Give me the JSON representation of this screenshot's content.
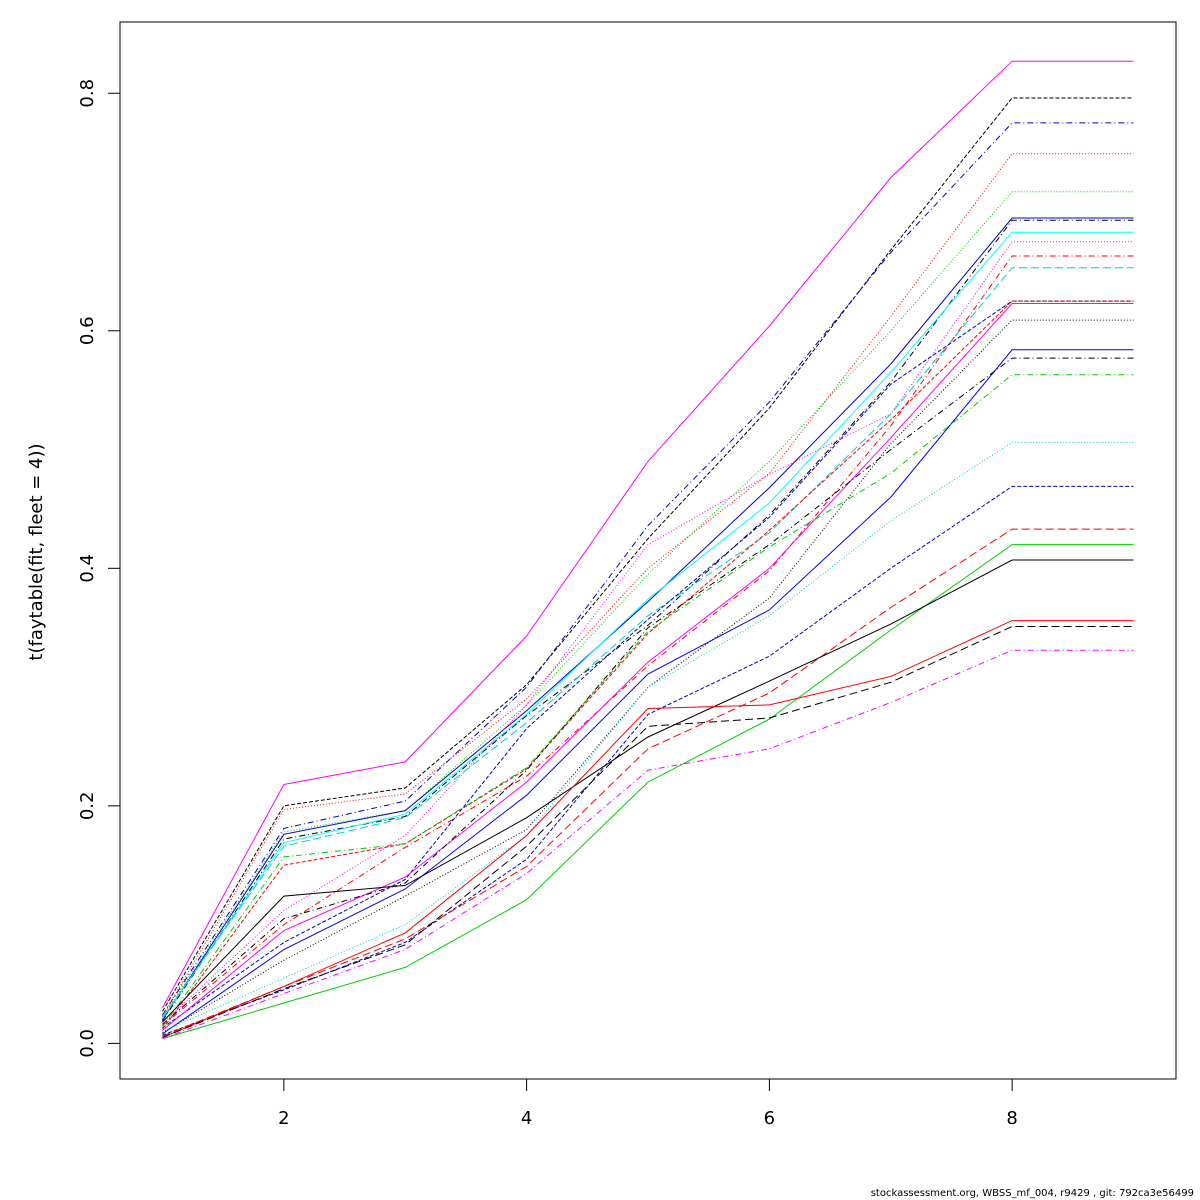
{
  "chart_data": {
    "type": "line",
    "title": "",
    "xlabel": "",
    "ylabel": "t(faytable(fit, fleet = 4))",
    "xlim": [
      0.65,
      9.35
    ],
    "ylim": [
      -0.03,
      0.86
    ],
    "x": [
      1,
      2,
      3,
      4,
      5,
      6,
      7,
      8,
      9
    ],
    "x_ticks": [
      2,
      4,
      6,
      8
    ],
    "y_ticks": [
      0.0,
      0.2,
      0.4,
      0.6,
      0.8
    ],
    "y_tick_labels": [
      "0.0",
      "0.2",
      "0.4",
      "0.6",
      "0.8"
    ],
    "grid": false,
    "legend": "none",
    "series": [
      {
        "color": "#ff00ff",
        "dash": "",
        "values": [
          0.03,
          0.218,
          0.237,
          0.343,
          0.49,
          0.604,
          0.729,
          0.827,
          0.827
        ]
      },
      {
        "color": "#000000",
        "dash": "4,2",
        "values": [
          0.027,
          0.2,
          0.215,
          0.302,
          0.425,
          0.535,
          0.668,
          0.796,
          0.796
        ]
      },
      {
        "color": "#0000cd",
        "dash": "6,3,1,3",
        "values": [
          0.024,
          0.181,
          0.204,
          0.3,
          0.436,
          0.54,
          0.666,
          0.775,
          0.775
        ]
      },
      {
        "color": "#ff0000",
        "dash": "1,2",
        "values": [
          0.023,
          0.197,
          0.21,
          0.29,
          0.4,
          0.48,
          0.612,
          0.749,
          0.749
        ]
      },
      {
        "color": "#00cd00",
        "dash": "1,2",
        "values": [
          0.022,
          0.178,
          0.196,
          0.285,
          0.395,
          0.49,
          0.6,
          0.717,
          0.717
        ]
      },
      {
        "color": "#0000cd",
        "dash": "",
        "values": [
          0.02,
          0.176,
          0.196,
          0.28,
          0.372,
          0.468,
          0.572,
          0.695,
          0.695
        ]
      },
      {
        "color": "#000000",
        "dash": "6,3,1,3",
        "values": [
          0.019,
          0.172,
          0.191,
          0.276,
          0.352,
          0.445,
          0.557,
          0.693,
          0.693
        ]
      },
      {
        "color": "#00ffff",
        "dash": "",
        "values": [
          0.021,
          0.169,
          0.193,
          0.277,
          0.374,
          0.455,
          0.565,
          0.683,
          0.683
        ]
      },
      {
        "color": "#ff00ff",
        "dash": "1,2",
        "values": [
          0.017,
          0.112,
          0.175,
          0.285,
          0.42,
          0.479,
          0.53,
          0.675,
          0.675
        ]
      },
      {
        "color": "#ff0000",
        "dash": "6,3,1,3",
        "values": [
          0.015,
          0.1,
          0.165,
          0.225,
          0.318,
          0.398,
          0.52,
          0.663,
          0.663
        ]
      },
      {
        "color": "#00cdcd",
        "dash": "8,4",
        "values": [
          0.022,
          0.166,
          0.19,
          0.27,
          0.36,
          0.43,
          0.53,
          0.653,
          0.653
        ]
      },
      {
        "color": "#0000cd",
        "dash": "4,2",
        "values": [
          0.013,
          0.085,
          0.138,
          0.265,
          0.357,
          0.443,
          0.555,
          0.625,
          0.625
        ]
      },
      {
        "color": "#ff00ff",
        "dash": "",
        "values": [
          0.011,
          0.095,
          0.14,
          0.22,
          0.321,
          0.4,
          0.51,
          0.623,
          0.623
        ]
      },
      {
        "color": "#ff0000",
        "dash": "4,2",
        "values": [
          0.012,
          0.15,
          0.168,
          0.231,
          0.345,
          0.432,
          0.525,
          0.625,
          0.625
        ]
      },
      {
        "color": "#000000",
        "dash": "1,2",
        "values": [
          0.009,
          0.07,
          0.124,
          0.18,
          0.3,
          0.375,
          0.505,
          0.609,
          0.609
        ]
      },
      {
        "color": "#0000ff",
        "dash": "",
        "values": [
          0.008,
          0.079,
          0.13,
          0.209,
          0.311,
          0.365,
          0.46,
          0.584,
          0.584
        ]
      },
      {
        "color": "#000000",
        "dash": "6,3,1,3",
        "values": [
          0.016,
          0.105,
          0.135,
          0.23,
          0.35,
          0.42,
          0.5,
          0.577,
          0.577
        ]
      },
      {
        "color": "#00cd00",
        "dash": "6,3,1,3",
        "values": [
          0.014,
          0.157,
          0.168,
          0.232,
          0.347,
          0.418,
          0.48,
          0.563,
          0.563
        ]
      },
      {
        "color": "#00cdcd",
        "dash": "1,2",
        "values": [
          0.01,
          0.055,
          0.1,
          0.175,
          0.3,
          0.36,
          0.44,
          0.506,
          0.506
        ]
      },
      {
        "color": "#0000cd",
        "dash": "4,2",
        "values": [
          0.007,
          0.045,
          0.085,
          0.155,
          0.277,
          0.326,
          0.4,
          0.469,
          0.469
        ]
      },
      {
        "color": "#ff0000",
        "dash": "8,4",
        "values": [
          0.006,
          0.048,
          0.088,
          0.149,
          0.248,
          0.295,
          0.367,
          0.433,
          0.433
        ]
      },
      {
        "color": "#00cd00",
        "dash": "",
        "values": [
          0.004,
          0.034,
          0.064,
          0.121,
          0.22,
          0.273,
          0.348,
          0.42,
          0.42
        ]
      },
      {
        "color": "#000000",
        "dash": "",
        "values": [
          0.018,
          0.124,
          0.133,
          0.19,
          0.258,
          0.305,
          0.353,
          0.407,
          0.407
        ]
      },
      {
        "color": "#ff0000",
        "dash": "",
        "values": [
          0.005,
          0.048,
          0.093,
          0.175,
          0.282,
          0.285,
          0.309,
          0.356,
          0.356
        ]
      },
      {
        "color": "#000000",
        "dash": "8,4",
        "values": [
          0.005,
          0.046,
          0.083,
          0.166,
          0.267,
          0.274,
          0.304,
          0.351,
          0.351
        ]
      },
      {
        "color": "#ff00ff",
        "dash": "6,3,1,3",
        "values": [
          0.004,
          0.042,
          0.079,
          0.143,
          0.23,
          0.248,
          0.287,
          0.331,
          0.331
        ]
      }
    ]
  },
  "footer": {
    "text": "stockassessment.org, WBSS_mf_004, r9429 , git: 792ca3e56499"
  }
}
